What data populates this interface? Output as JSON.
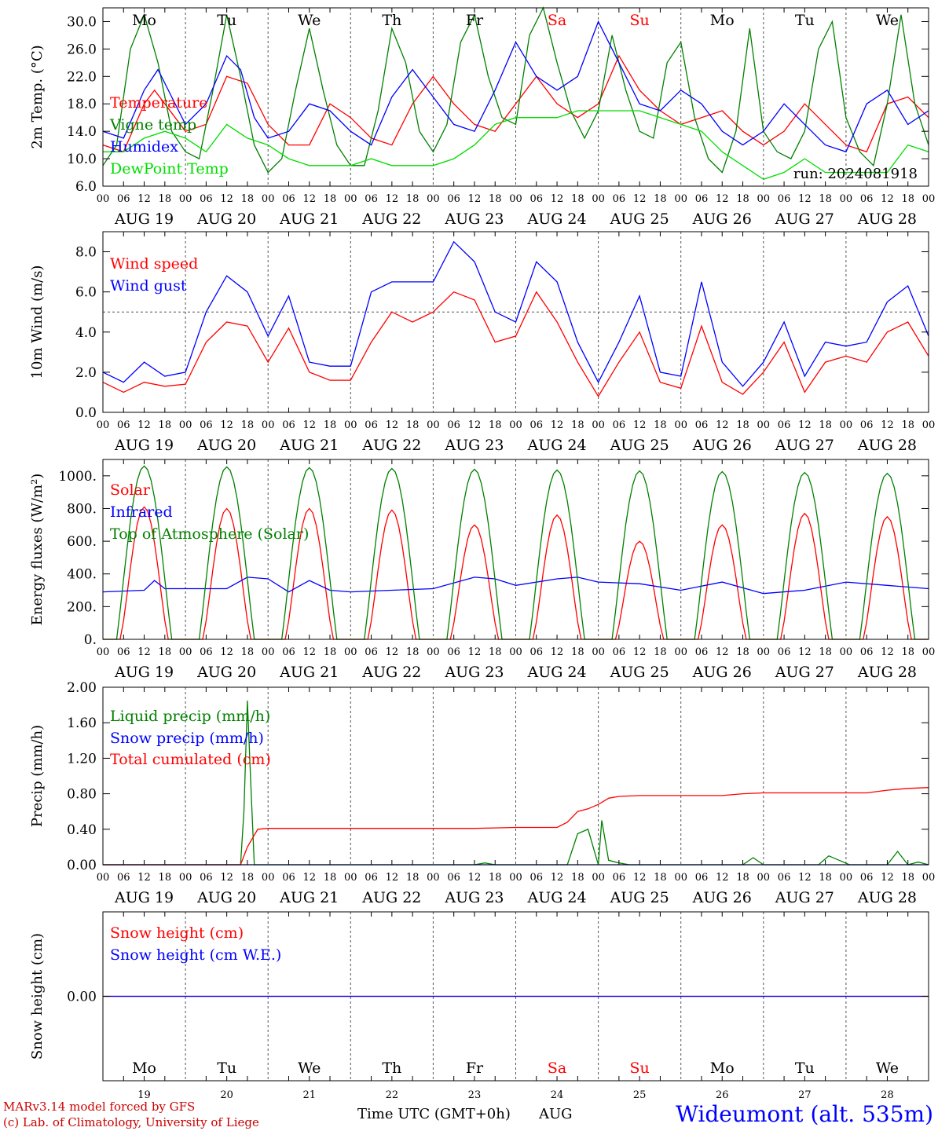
{
  "meta": {
    "run_label": "run: 2024081918",
    "footer_model": "MARv3.14 model forced by GFS",
    "footer_lab": "(c) Lab. of Climatology, University of Liege",
    "footer_axis": "Time UTC (GMT+0h)",
    "footer_month": "AUG",
    "station": "Wideumont (alt. 535m)"
  },
  "days": {
    "names": [
      "Mo",
      "Tu",
      "We",
      "Th",
      "Fr",
      "Sa",
      "Su",
      "Mo",
      "Tu",
      "We"
    ],
    "weekend_flags": [
      false,
      false,
      false,
      false,
      false,
      true,
      true,
      false,
      false,
      false
    ],
    "dates": [
      "AUG 19",
      "AUG 20",
      "AUG 21",
      "AUG 22",
      "AUG 23",
      "AUG 24",
      "AUG 25",
      "AUG 26",
      "AUG 27",
      "AUG 28"
    ],
    "day_numbers": [
      "19",
      "20",
      "21",
      "22",
      "23",
      "24",
      "25",
      "26",
      "27",
      "28"
    ],
    "hour_ticks": [
      "00",
      "06",
      "12",
      "18"
    ],
    "end_tick": "00"
  },
  "colors": {
    "temperature": "#ff0000",
    "vigne": "#008000",
    "humidex": "#0000ff",
    "dewpoint": "#00dd00",
    "weekend": "#ff0000",
    "station": "#0000ff",
    "footer": "#cc0000"
  },
  "chart_data": [
    {
      "id": "temp",
      "type": "line",
      "ylabel": "2m Temp. (°C)",
      "ylim": [
        6,
        32
      ],
      "yticks": [
        6,
        10,
        14,
        18,
        22,
        26,
        30
      ],
      "ytick_labels": [
        "6.0",
        "10.0",
        "14.0",
        "18.0",
        "22.0",
        "26.0",
        "30.0"
      ],
      "x_unit": "hours from AUG 19 00 UTC",
      "x_range": [
        0,
        240
      ],
      "series": [
        {
          "name": "Temperature",
          "color": "#ff0000",
          "x": [
            0,
            6,
            12,
            15,
            18,
            24,
            30,
            36,
            42,
            48,
            54,
            60,
            66,
            72,
            78,
            84,
            90,
            96,
            102,
            108,
            114,
            120,
            126,
            132,
            138,
            144,
            150,
            156,
            162,
            168,
            174,
            180,
            186,
            192,
            198,
            204,
            210,
            216,
            222,
            228,
            234,
            240
          ],
          "values": [
            12,
            11,
            18,
            20,
            18,
            14,
            15,
            22,
            21,
            15,
            12,
            12,
            18,
            16,
            13,
            12,
            18,
            22,
            18,
            15,
            14,
            18,
            22,
            18,
            16,
            18,
            25,
            20,
            17,
            15,
            16,
            17,
            14,
            12,
            14,
            18,
            15,
            12,
            11,
            18,
            19,
            16
          ]
        },
        {
          "name": "Vigne temp",
          "color": "#008000",
          "x": [
            0,
            4,
            8,
            12,
            16,
            20,
            24,
            28,
            32,
            36,
            40,
            44,
            48,
            52,
            56,
            60,
            64,
            68,
            72,
            76,
            80,
            84,
            88,
            92,
            96,
            100,
            104,
            108,
            112,
            116,
            120,
            124,
            128,
            132,
            136,
            140,
            144,
            148,
            152,
            156,
            160,
            164,
            168,
            172,
            176,
            180,
            184,
            188,
            192,
            196,
            200,
            204,
            208,
            212,
            216,
            220,
            224,
            228,
            232,
            236,
            240
          ],
          "values": [
            9,
            12,
            26,
            31,
            24,
            14,
            11,
            10,
            20,
            31,
            22,
            12,
            8,
            10,
            20,
            29,
            20,
            12,
            9,
            9,
            17,
            29,
            24,
            14,
            11,
            15,
            27,
            31,
            22,
            16,
            15,
            28,
            32,
            24,
            17,
            13,
            17,
            28,
            20,
            14,
            13,
            24,
            27,
            16,
            10,
            8,
            14,
            29,
            14,
            11,
            10,
            14,
            26,
            30,
            16,
            11,
            9,
            18,
            31,
            18,
            12
          ]
        },
        {
          "name": "Humidex",
          "color": "#0000ff",
          "x": [
            0,
            6,
            12,
            16,
            20,
            24,
            30,
            36,
            40,
            44,
            48,
            54,
            60,
            66,
            72,
            78,
            84,
            90,
            96,
            102,
            108,
            114,
            120,
            126,
            132,
            138,
            144,
            150,
            156,
            162,
            168,
            174,
            180,
            186,
            192,
            198,
            204,
            210,
            216,
            222,
            228,
            234,
            240
          ],
          "values": [
            14,
            13,
            20,
            23,
            19,
            15,
            18,
            25,
            23,
            16,
            13,
            14,
            18,
            17,
            14,
            12,
            19,
            23,
            19,
            15,
            14,
            20,
            27,
            22,
            20,
            22,
            30,
            24,
            18,
            17,
            20,
            18,
            14,
            12,
            14,
            18,
            15,
            12,
            11,
            18,
            20,
            15,
            17
          ]
        },
        {
          "name": "DewPoint Temp",
          "color": "#00dd00",
          "x": [
            0,
            6,
            12,
            18,
            24,
            30,
            36,
            42,
            48,
            54,
            60,
            66,
            72,
            78,
            84,
            90,
            96,
            102,
            108,
            114,
            120,
            126,
            132,
            138,
            144,
            150,
            156,
            162,
            168,
            174,
            180,
            186,
            192,
            198,
            204,
            210,
            216,
            222,
            228,
            234,
            240
          ],
          "values": [
            11,
            11,
            13,
            14,
            13,
            11,
            15,
            13,
            12,
            10,
            9,
            9,
            9,
            10,
            9,
            9,
            9,
            10,
            12,
            15,
            16,
            16,
            16,
            17,
            17,
            17,
            17,
            16,
            15,
            14,
            11,
            9,
            7,
            8,
            10,
            8,
            8,
            8,
            8,
            12,
            11
          ]
        }
      ]
    },
    {
      "id": "wind",
      "type": "line",
      "ylabel": "10m Wind (m/s)",
      "ylim": [
        0,
        9
      ],
      "yticks": [
        0,
        2,
        4,
        6,
        8
      ],
      "ytick_labels": [
        "0.0",
        "2.0",
        "4.0",
        "6.0",
        "8.0"
      ],
      "reference_line": 5,
      "x_unit": "hours from AUG 19 00 UTC",
      "x_range": [
        0,
        240
      ],
      "series": [
        {
          "name": "Wind speed",
          "color": "#ff0000",
          "x": [
            0,
            6,
            12,
            18,
            24,
            30,
            36,
            42,
            48,
            54,
            60,
            66,
            72,
            78,
            84,
            90,
            96,
            102,
            108,
            114,
            120,
            126,
            132,
            138,
            144,
            150,
            156,
            162,
            168,
            174,
            180,
            186,
            192,
            198,
            204,
            210,
            216,
            222,
            228,
            234,
            240
          ],
          "values": [
            1.5,
            1.0,
            1.5,
            1.3,
            1.4,
            3.5,
            4.5,
            4.3,
            2.5,
            4.2,
            2.0,
            1.6,
            1.6,
            3.5,
            5.0,
            4.5,
            5.0,
            6.0,
            5.6,
            3.5,
            3.8,
            6.0,
            4.5,
            2.5,
            0.8,
            2.5,
            4.0,
            1.5,
            1.2,
            4.3,
            1.5,
            0.9,
            2.0,
            3.5,
            1.0,
            2.5,
            2.8,
            2.5,
            4.0,
            4.5,
            2.8
          ]
        },
        {
          "name": "Wind gust",
          "color": "#0000ff",
          "x": [
            0,
            6,
            12,
            18,
            24,
            30,
            36,
            42,
            48,
            54,
            60,
            66,
            72,
            78,
            84,
            90,
            96,
            102,
            108,
            114,
            120,
            126,
            132,
            138,
            144,
            150,
            156,
            162,
            168,
            174,
            180,
            186,
            192,
            198,
            204,
            210,
            216,
            222,
            228,
            234,
            240
          ],
          "values": [
            2.0,
            1.5,
            2.5,
            1.8,
            2.0,
            5.0,
            6.8,
            6.0,
            3.8,
            5.8,
            2.5,
            2.3,
            2.3,
            6.0,
            6.5,
            6.5,
            6.5,
            8.5,
            7.5,
            5.0,
            4.5,
            7.5,
            6.5,
            3.5,
            1.5,
            3.5,
            5.8,
            2.0,
            1.8,
            6.5,
            2.5,
            1.3,
            2.5,
            4.5,
            1.8,
            3.5,
            3.3,
            3.5,
            5.5,
            6.3,
            3.8
          ]
        }
      ]
    },
    {
      "id": "energy",
      "type": "line",
      "ylabel": "Energy fluxes (W/m²)",
      "ylim": [
        0,
        1100
      ],
      "yticks": [
        0,
        200,
        400,
        600,
        800,
        1000
      ],
      "ytick_labels": [
        "0.",
        "200.",
        "400.",
        "600.",
        "800.",
        "1000."
      ],
      "x_unit": "hours from AUG 19 00 UTC",
      "x_range": [
        0,
        240
      ],
      "daily_peaks": {
        "solar": [
          810,
          800,
          800,
          790,
          700,
          760,
          600,
          700,
          770,
          750
        ],
        "top_of_atmosphere": [
          1060,
          1055,
          1050,
          1045,
          1040,
          1035,
          1030,
          1025,
          1020,
          1015
        ],
        "day_hours": [
          4,
          20
        ]
      },
      "series": [
        {
          "name": "Solar",
          "color": "#ff0000",
          "generated_from": "daily_peaks.solar"
        },
        {
          "name": "Infrared",
          "color": "#0000ff",
          "x": [
            0,
            12,
            15,
            18,
            24,
            36,
            42,
            48,
            54,
            60,
            66,
            72,
            84,
            96,
            108,
            114,
            120,
            132,
            138,
            144,
            156,
            168,
            180,
            192,
            204,
            216,
            228,
            240
          ],
          "values": [
            290,
            300,
            360,
            310,
            310,
            310,
            380,
            370,
            290,
            360,
            300,
            290,
            300,
            310,
            380,
            370,
            330,
            370,
            380,
            350,
            340,
            300,
            350,
            280,
            300,
            350,
            330,
            310
          ]
        },
        {
          "name": "Top of Atmosphere (Solar)",
          "color": "#008000",
          "generated_from": "daily_peaks.top_of_atmosphere"
        }
      ]
    },
    {
      "id": "precip",
      "type": "line",
      "ylabel": "Precip (mm/h)",
      "ylim": [
        0,
        2
      ],
      "yticks": [
        0,
        0.4,
        0.8,
        1.2,
        1.6,
        2.0
      ],
      "ytick_labels": [
        "0.00",
        "0.40",
        "0.80",
        "1.20",
        "1.60",
        "2.00"
      ],
      "x_unit": "hours from AUG 19 00 UTC",
      "x_range": [
        0,
        240
      ],
      "series": [
        {
          "name": "Liquid precip (mm/h)",
          "color": "#008000",
          "x": [
            0,
            40,
            41,
            42,
            43,
            44,
            46,
            108,
            111,
            114,
            135,
            138,
            141,
            144,
            145,
            147,
            150,
            153,
            156,
            160,
            186,
            189,
            192,
            208,
            211,
            214,
            217,
            220,
            228,
            231,
            234,
            237,
            240
          ],
          "values": [
            0,
            0,
            0.6,
            1.85,
            0.9,
            0,
            0,
            0,
            0.02,
            0,
            0,
            0.35,
            0.4,
            0,
            0.5,
            0.05,
            0.02,
            0,
            0,
            0,
            0,
            0.08,
            0,
            0,
            0.1,
            0.05,
            0,
            0,
            0,
            0.15,
            0,
            0.03,
            0
          ]
        },
        {
          "name": "Snow precip (mm/h)",
          "color": "#0000ff",
          "x": [
            0,
            240
          ],
          "values": [
            0,
            0
          ]
        },
        {
          "name": "Total cumulated (cm)",
          "color": "#ff0000",
          "x": [
            0,
            40,
            42,
            45,
            48,
            108,
            120,
            132,
            135,
            138,
            141,
            144,
            147,
            150,
            156,
            180,
            186,
            192,
            204,
            216,
            222,
            228,
            234,
            240
          ],
          "values": [
            0,
            0,
            0.2,
            0.4,
            0.41,
            0.41,
            0.42,
            0.42,
            0.48,
            0.6,
            0.63,
            0.68,
            0.75,
            0.77,
            0.78,
            0.78,
            0.8,
            0.81,
            0.81,
            0.81,
            0.81,
            0.84,
            0.86,
            0.87
          ]
        }
      ]
    },
    {
      "id": "snow",
      "type": "line",
      "ylabel": "Snow height (cm)",
      "ylim": [
        -1,
        1
      ],
      "yticks": [
        0
      ],
      "ytick_labels": [
        "0.00"
      ],
      "x_unit": "hours from AUG 19 00 UTC",
      "x_range": [
        0,
        240
      ],
      "series": [
        {
          "name": "Snow height (cm)",
          "color": "#ff0000",
          "x": [
            0,
            240
          ],
          "values": [
            0,
            0
          ]
        },
        {
          "name": "Snow height (cm W.E.)",
          "color": "#0000ff",
          "x": [
            0,
            240
          ],
          "values": [
            0,
            0
          ]
        }
      ]
    }
  ]
}
